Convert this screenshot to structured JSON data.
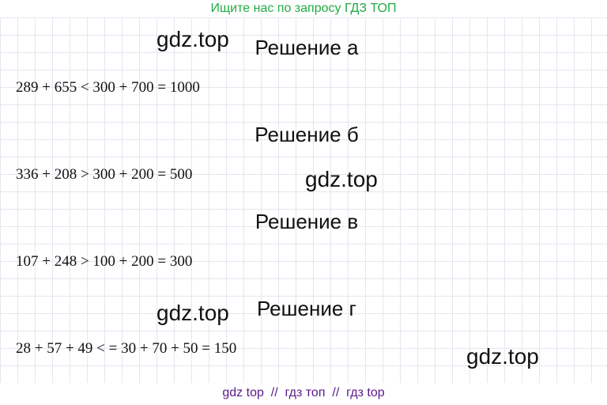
{
  "header": {
    "title": "Ищите нас по запросу ГДЗ ТОП"
  },
  "watermarks": [
    "gdz.top",
    "gdz.top",
    "gdz.top",
    "gdz.top"
  ],
  "sections": [
    {
      "heading": "Решение а",
      "equation": "289 + 655 < 300 + 700 = 1000"
    },
    {
      "heading": "Решение б",
      "equation": "336 + 208 > 300 + 200 = 500"
    },
    {
      "heading": "Решение в",
      "equation": "107 + 248 > 100 + 200 = 300"
    },
    {
      "heading": "Решение г",
      "equation": "28 + 57 + 49 < = 30 + 70 + 50 = 150"
    }
  ],
  "footer": {
    "text": "gdz top  //  гдз топ  //  гдз top"
  }
}
